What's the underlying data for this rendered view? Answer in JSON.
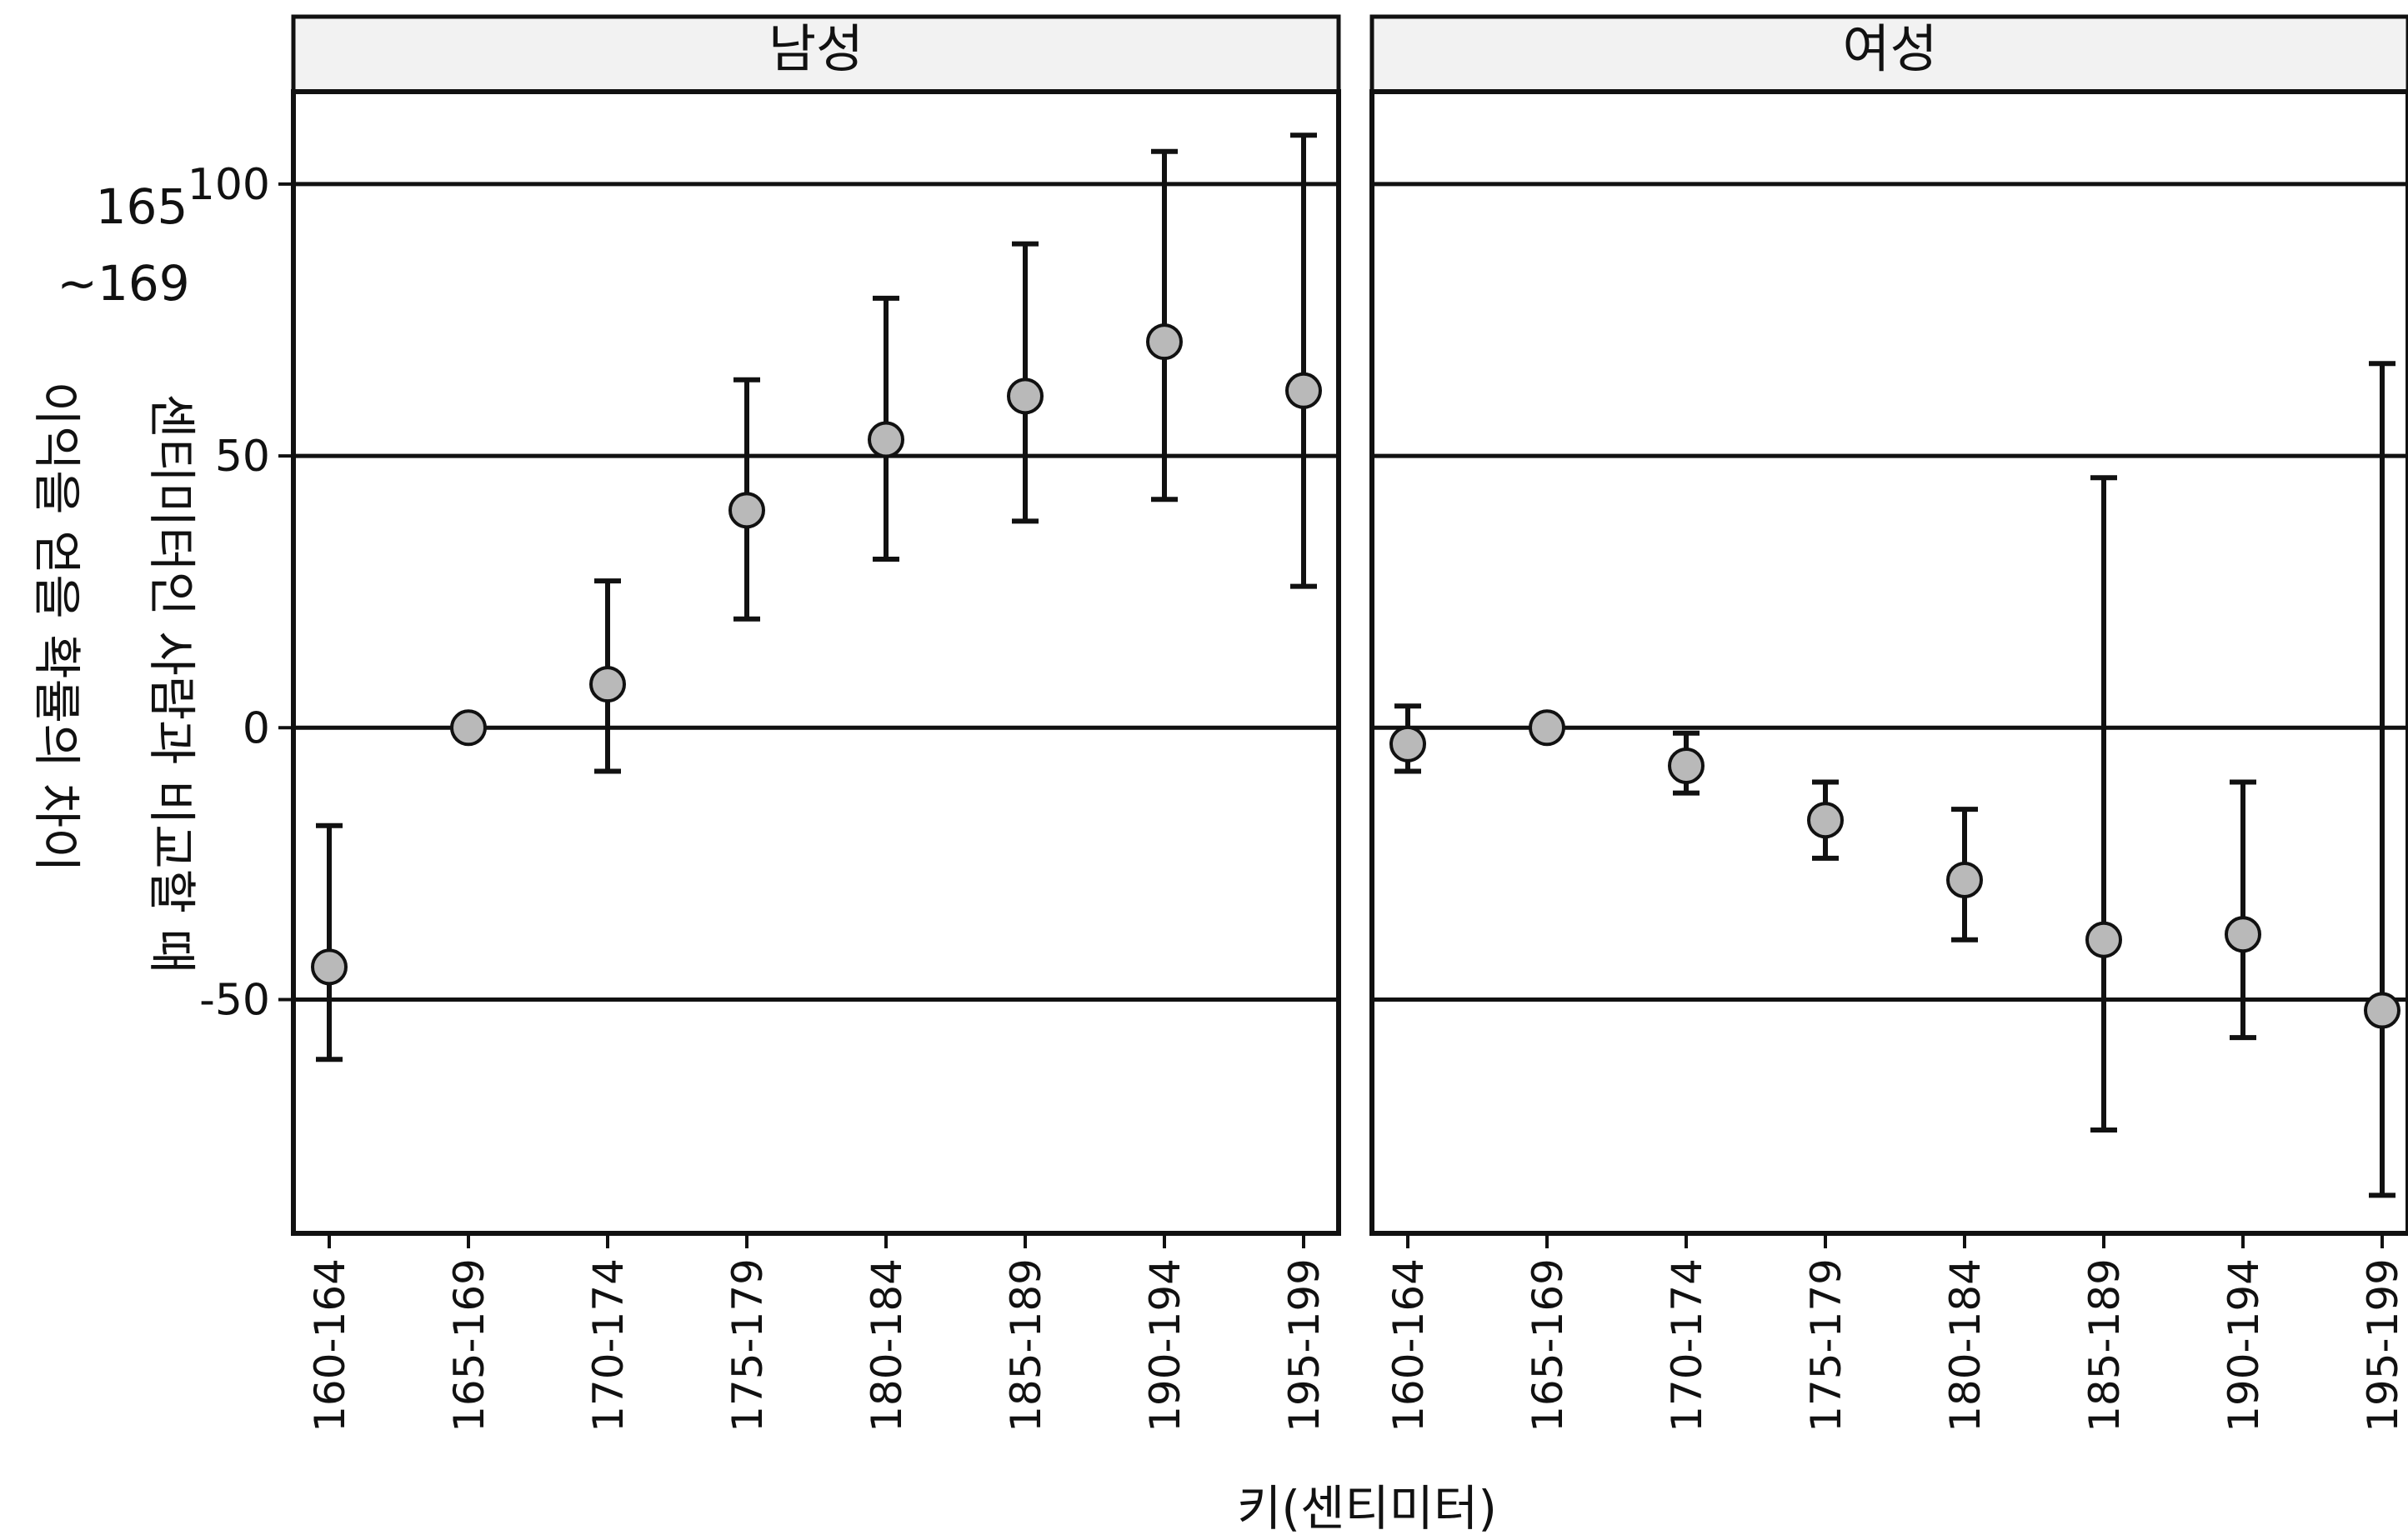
{
  "chart_data": {
    "type": "scatter",
    "xlabel": "키(센티미터)",
    "ylabel_lines": [
      "165",
      "~169",
      "센티미터인 사람과 비교할 때",
      "이익을 얻을 확률의 차이"
    ],
    "ylim": [
      -93,
      117
    ],
    "yticks": [
      100,
      50,
      0,
      -50
    ],
    "ytick_labels": [
      "100",
      "50",
      "0",
      "-50"
    ],
    "categories": [
      "160-164",
      "165-169",
      "170-174",
      "175-179",
      "180-184",
      "185-189",
      "190-194",
      "195-199"
    ],
    "panels": [
      {
        "name": "남성",
        "points": [
          {
            "x": "160-164",
            "y": -44,
            "lo": -61,
            "hi": -18
          },
          {
            "x": "165-169",
            "y": 0,
            "lo": null,
            "hi": null
          },
          {
            "x": "170-174",
            "y": 8,
            "lo": -8,
            "hi": 27
          },
          {
            "x": "175-179",
            "y": 40,
            "lo": 20,
            "hi": 64
          },
          {
            "x": "180-184",
            "y": 53,
            "lo": 31,
            "hi": 79
          },
          {
            "x": "185-189",
            "y": 61,
            "lo": 38,
            "hi": 89
          },
          {
            "x": "190-194",
            "y": 71,
            "lo": 42,
            "hi": 106
          },
          {
            "x": "195-199",
            "y": 62,
            "lo": 26,
            "hi": 109
          }
        ]
      },
      {
        "name": "여성",
        "points": [
          {
            "x": "160-164",
            "y": -3,
            "lo": -8,
            "hi": 4
          },
          {
            "x": "165-169",
            "y": 0,
            "lo": null,
            "hi": null
          },
          {
            "x": "170-174",
            "y": -7,
            "lo": -12,
            "hi": -1
          },
          {
            "x": "175-179",
            "y": -17,
            "lo": -24,
            "hi": -10
          },
          {
            "x": "180-184",
            "y": -28,
            "lo": -39,
            "hi": -15
          },
          {
            "x": "185-189",
            "y": -39,
            "lo": -74,
            "hi": 46
          },
          {
            "x": "190-194",
            "y": -38,
            "lo": -57,
            "hi": -10
          },
          {
            "x": "195-199",
            "y": -52,
            "lo": -86,
            "hi": 67
          }
        ]
      }
    ],
    "point_fill": "#b9b9b9",
    "line_color": "#111111",
    "grid": true
  }
}
